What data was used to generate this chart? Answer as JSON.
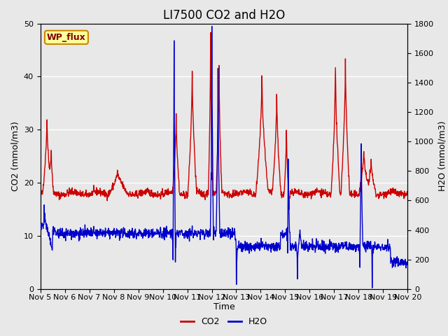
{
  "title": "LI7500 CO2 and H2O",
  "xlabel": "Time",
  "ylabel_left": "CO2 (mmol/m3)",
  "ylabel_right": "H2O (mmol/m3)",
  "ylim_left": [
    0,
    50
  ],
  "ylim_right": [
    0,
    1800
  ],
  "xmin": 5,
  "xmax": 20,
  "xtick_positions": [
    5,
    6,
    7,
    8,
    9,
    10,
    11,
    12,
    13,
    14,
    15,
    16,
    17,
    18,
    19,
    20
  ],
  "xtick_labels": [
    "Nov 5",
    "Nov 6",
    "Nov 7",
    "Nov 8",
    "Nov 9",
    "Nov 10",
    "Nov 11",
    "Nov 12",
    "Nov 13",
    "Nov 14",
    "Nov 15",
    "Nov 16",
    "Nov 17",
    "Nov 18",
    "Nov 19",
    "Nov 20"
  ],
  "co2_color": "#cc0000",
  "h2o_color": "#0000cc",
  "line_width": 1.0,
  "bg_color": "#e8e8e8",
  "grid_color": "#ffffff",
  "text_box_label": "WP_flux",
  "text_box_bg": "#ffff99",
  "text_box_border": "#cc8800",
  "text_color": "#800000",
  "title_fontsize": 12,
  "axis_label_fontsize": 9,
  "tick_fontsize": 8,
  "legend_co2_label": "CO2",
  "legend_h2o_label": "H2O",
  "scale_factor": 36.0,
  "n_points": 1440,
  "t_start": 5.0,
  "t_end": 20.0,
  "seed": 42
}
